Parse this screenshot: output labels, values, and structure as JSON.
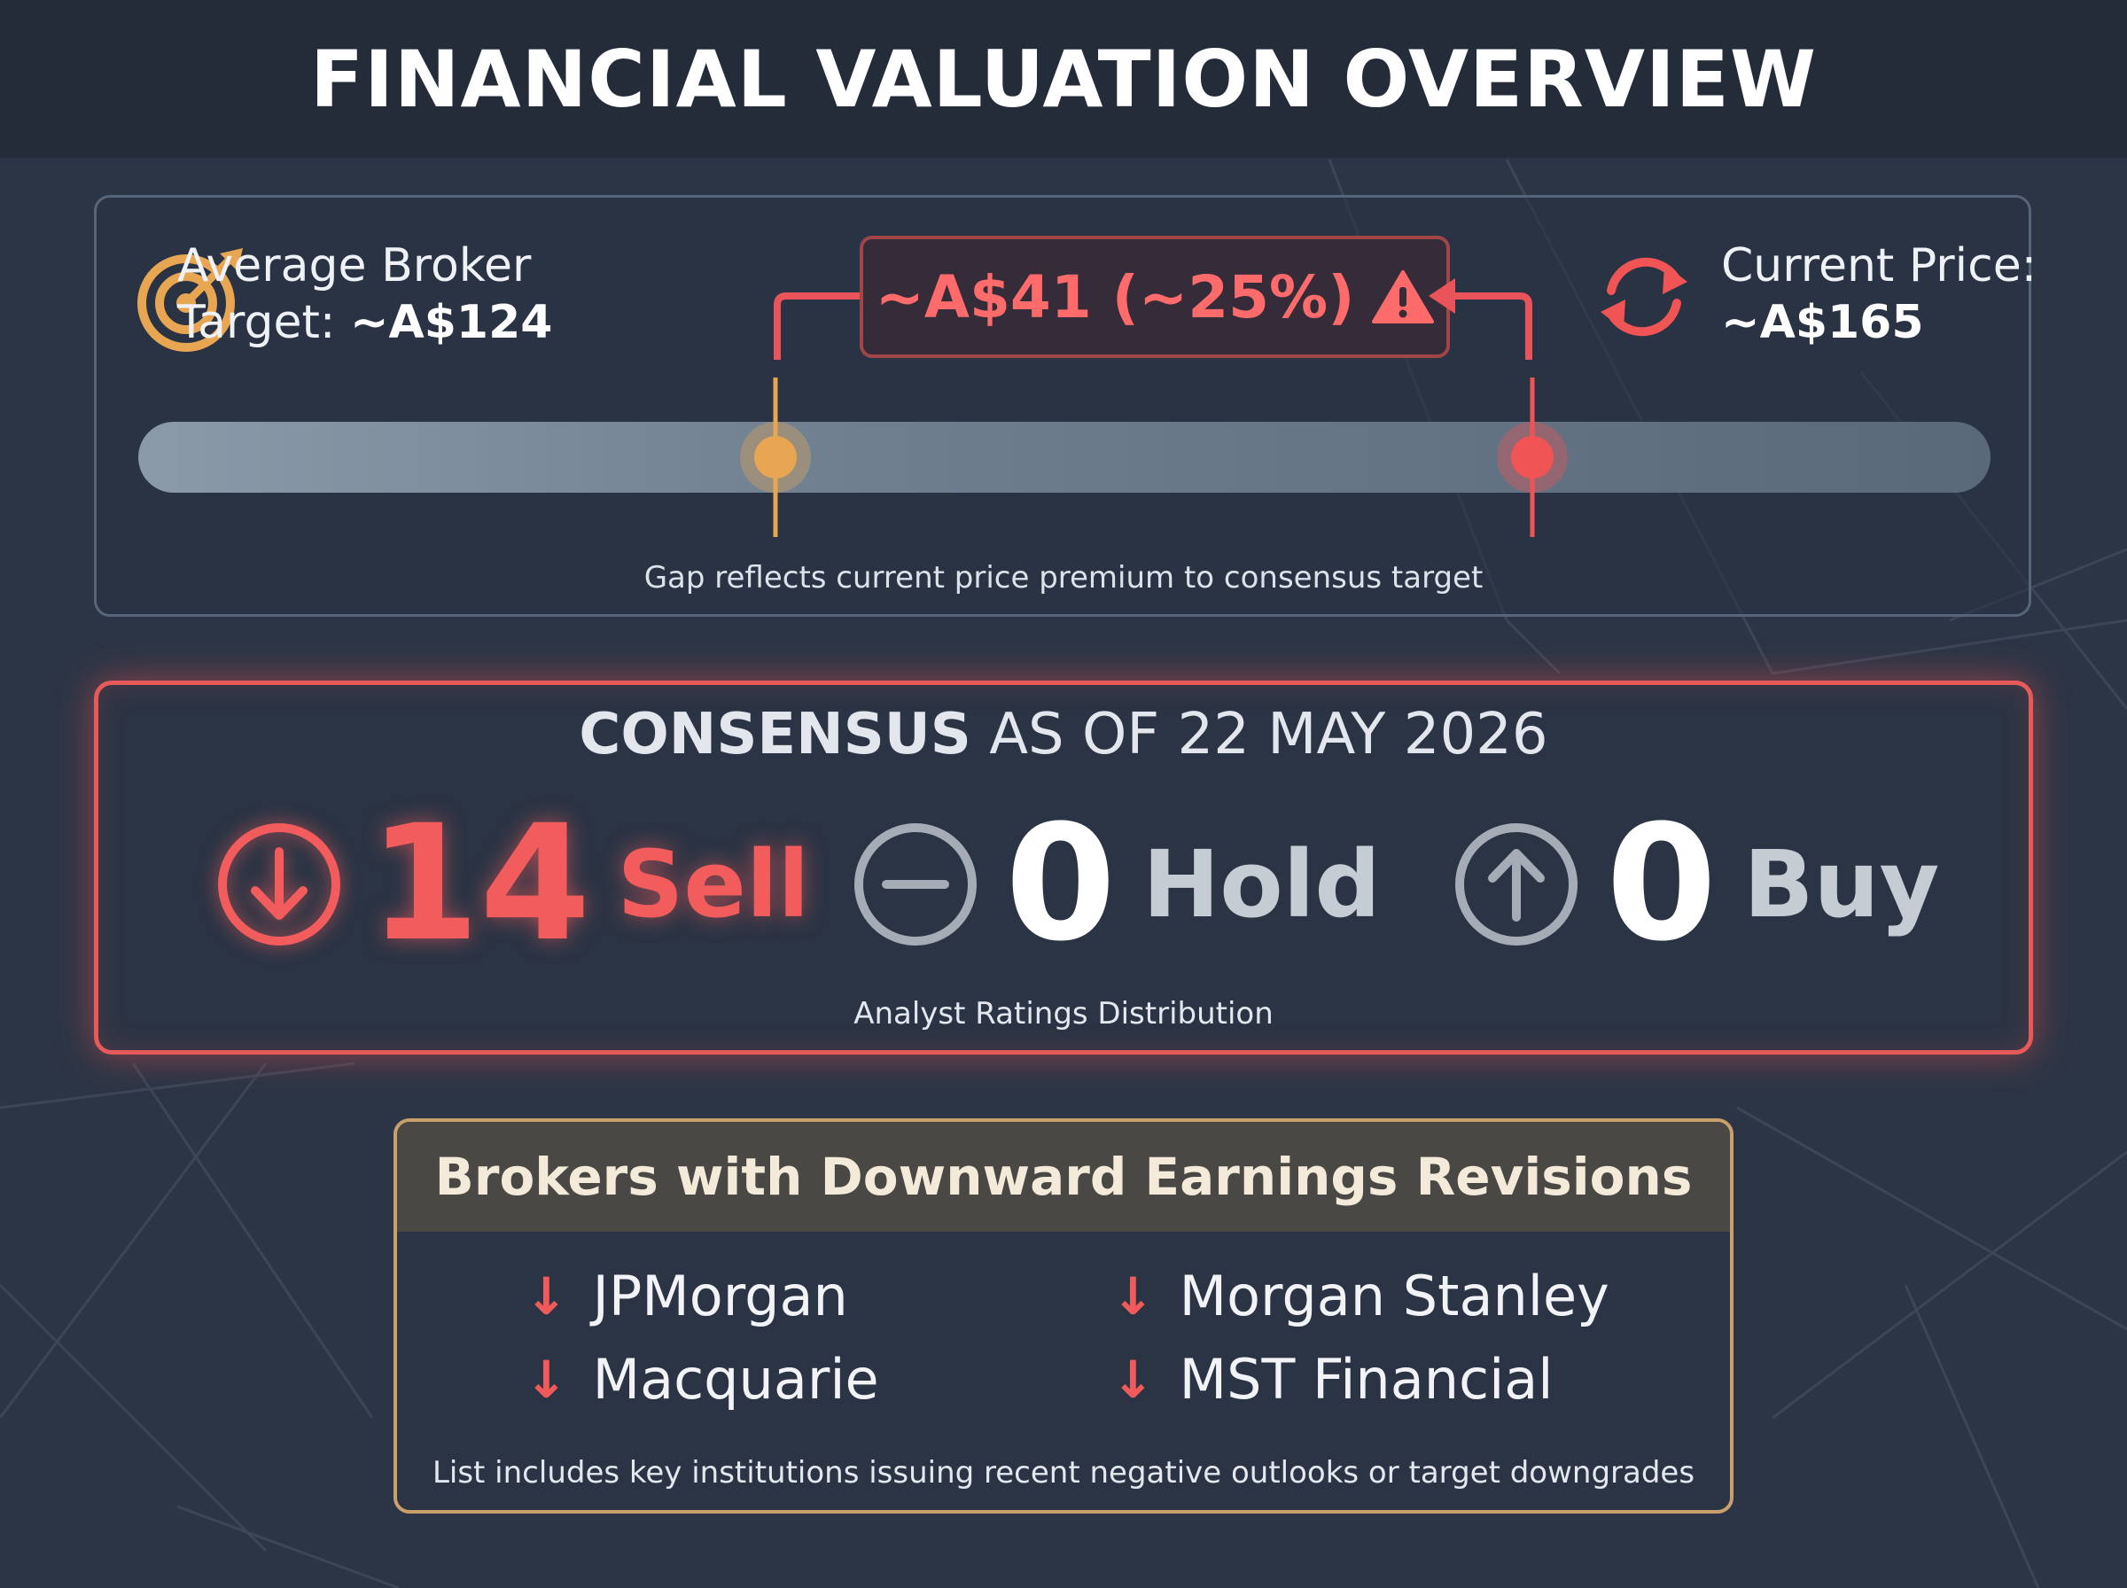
{
  "header": {
    "title": "FINANCIAL VALUATION OVERVIEW"
  },
  "valuation": {
    "target_label": "Average Broker",
    "target_label_line2": "Target:",
    "target_value": "~A$124",
    "price_label": "Current Price:",
    "price_value": "~A$165",
    "gap_text": "~A$41 (~25%)",
    "caption": "Gap reflects current price premium to consensus target",
    "colors": {
      "target": "#e8a552",
      "price": "#f05454",
      "gap": "#ff6b6b"
    }
  },
  "consensus": {
    "title_bold": "CONSENSUS",
    "title_rest": " AS OF 22 MAY 2026",
    "ratings": [
      {
        "count": "14",
        "label": "Sell",
        "icon": "arrow-down-circle-icon"
      },
      {
        "count": "0",
        "label": "Hold",
        "icon": "minus-circle-icon"
      },
      {
        "count": "0",
        "label": "Buy",
        "icon": "arrow-up-circle-icon"
      }
    ],
    "caption": "Analyst Ratings Distribution"
  },
  "brokers": {
    "title": "Brokers with Downward Earnings Revisions",
    "items": [
      "JPMorgan",
      "Morgan Stanley",
      "Macquarie",
      "MST Financial"
    ],
    "arrow": "↓",
    "caption": "List includes key institutions issuing recent negative outlooks or target downgrades"
  }
}
